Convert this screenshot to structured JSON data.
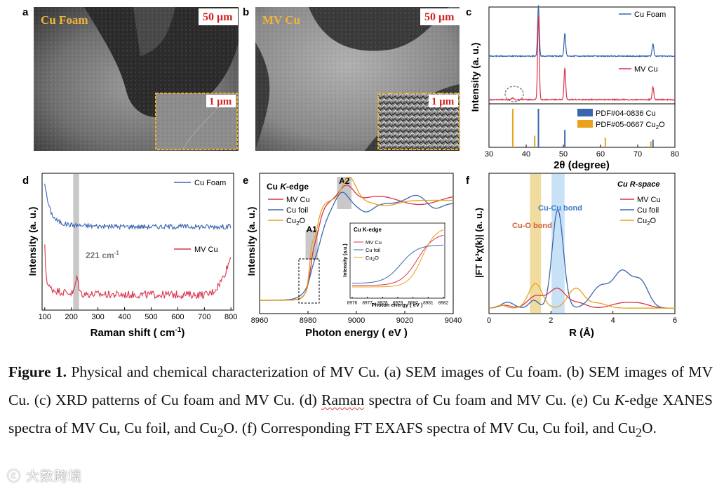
{
  "panels": {
    "a": {
      "letter": "a",
      "label": "Cu Foam",
      "scale_main": "50 μm",
      "scale_inset": "1 μm"
    },
    "b": {
      "letter": "b",
      "label": "MV Cu",
      "scale_main": "50 μm",
      "scale_inset": "1 μm"
    }
  },
  "colors": {
    "blue": "#3a66b0",
    "red": "#d8344a",
    "orange": "#e9a21c",
    "gray_band": "#c8c8c8",
    "tan_band": "#f1dca0",
    "lightblue_band": "#c7e2f7"
  },
  "chart_data": [
    {
      "id": "c",
      "letter": "c",
      "type": "line",
      "title": "",
      "xlabel": "2θ (degree)",
      "ylabel": "Intensity (a. u.)",
      "xlim": [
        30,
        80
      ],
      "xticks": [
        30,
        40,
        50,
        60,
        70,
        80
      ],
      "series": [
        {
          "name": "Cu Foam",
          "color": "#3a66b0",
          "peaks": [
            [
              43.3,
              1.0
            ],
            [
              50.4,
              0.45
            ],
            [
              74.1,
              0.25
            ]
          ]
        },
        {
          "name": "MV Cu",
          "color": "#d8344a",
          "peaks": [
            [
              43.3,
              1.0
            ],
            [
              50.4,
              0.38
            ],
            [
              74.1,
              0.15
            ]
          ]
        }
      ],
      "references": [
        {
          "name": "PDF#04-0836 Cu",
          "color": "#3a66b0",
          "lines": [
            [
              43.3,
              1.0
            ],
            [
              50.4,
              0.45
            ],
            [
              74.1,
              0.2
            ]
          ]
        },
        {
          "name": "PDF#05-0667 Cu2O",
          "color": "#e9a21c",
          "lines": [
            [
              36.4,
              1.0
            ],
            [
              42.3,
              0.3
            ],
            [
              61.3,
              0.25
            ],
            [
              73.5,
              0.15
            ]
          ]
        }
      ],
      "legend_ref_1": "PDF#04-0836 Cu",
      "legend_ref_2_main": "PDF#05-0667 Cu",
      "legend_ref_2_sub": "2",
      "legend_ref_2_tail": "O",
      "annotation": "dashed circle near 2θ ≈ 36°"
    },
    {
      "id": "d",
      "letter": "d",
      "type": "line",
      "xlabel_main": "Raman shift ( cm",
      "xlabel_sup": "-1",
      "xlabel_tail": ")",
      "ylabel": "Intensity (a. u.)",
      "xlim": [
        90,
        810
      ],
      "xticks": [
        100,
        200,
        300,
        400,
        500,
        600,
        700,
        800
      ],
      "band": [
        207,
        229
      ],
      "annotation_main": "221 cm",
      "annotation_sup": "-1",
      "series": [
        {
          "name": "Cu Foam",
          "color": "#3a66b0"
        },
        {
          "name": "MV Cu",
          "color": "#d8344a"
        }
      ]
    },
    {
      "id": "e",
      "letter": "e",
      "type": "line",
      "title_main": "Cu ",
      "title_italic": "K",
      "title_tail": "-edge",
      "xlabel": "Photon energy ( eV )",
      "ylabel": "Intensity (a. u.)",
      "xlim": [
        8960,
        9040
      ],
      "xticks": [
        8960,
        8980,
        9000,
        9020,
        9040
      ],
      "bands": [
        {
          "label": "A1",
          "x": [
            8979,
            8984
          ]
        },
        {
          "label": "A2",
          "x": [
            8992,
            8998
          ]
        }
      ],
      "series": [
        {
          "name": "MV Cu",
          "color": "#d8344a"
        },
        {
          "name": "Cu foil",
          "color": "#3a66b0"
        },
        {
          "name": "Cu2O",
          "color": "#e9a21c"
        }
      ],
      "legend": [
        "MV Cu",
        "Cu foil",
        "Cu"
      ],
      "legend_sub": "2",
      "legend_tail": "O",
      "inset": {
        "title": "Cu K-edge",
        "xlabel": "Photon energy ( eV )",
        "ylabel": "Intensity (a.u.)",
        "xlim": [
          8976,
          8982
        ],
        "xticks": [
          8976,
          8977,
          8978,
          8979,
          8980,
          8981,
          8982
        ],
        "legend": [
          "MV Cu",
          "Cu foil",
          "Cu"
        ]
      }
    },
    {
      "id": "f",
      "letter": "f",
      "type": "line",
      "title": "Cu  R-space",
      "xlabel": "R (Å)",
      "ylabel": "|FT k³χ(k)| (a. u.)",
      "xlim": [
        0,
        6
      ],
      "xticks": [
        0,
        2,
        4,
        6
      ],
      "bands": [
        {
          "label": "Cu-O bond",
          "x": [
            1.32,
            1.68
          ],
          "color": "#f1dca0"
        },
        {
          "label": "Cu-Cu bond",
          "x": [
            2.02,
            2.44
          ],
          "color": "#c7e2f7"
        }
      ],
      "series": [
        {
          "name": "MV Cu",
          "color": "#d8344a"
        },
        {
          "name": "Cu foil",
          "color": "#3a66b0"
        },
        {
          "name": "Cu2O",
          "color": "#e9a21c"
        }
      ],
      "legend": [
        "MV Cu",
        "Cu foil",
        "Cu"
      ]
    }
  ],
  "caption": {
    "figure_label": "Figure 1.",
    "t1": " Physical and chemical characterization of MV Cu. (a) SEM images of Cu foam. (b) SEM images of MV Cu. (c) XRD patterns of Cu foam and MV Cu. (d) ",
    "raman": "Raman",
    "t2": " spectra of Cu foam and MV Cu. (e) Cu ",
    "k_italic": "K",
    "t3": "-edge XANES spectra of MV Cu, Cu foil, and Cu",
    "sub1": "2",
    "t4": "O. (f) Corresponding FT EXAFS spectra of MV Cu, Cu foil, and Cu",
    "sub2": "2",
    "t5": "O."
  },
  "watermark": "大数跨境"
}
